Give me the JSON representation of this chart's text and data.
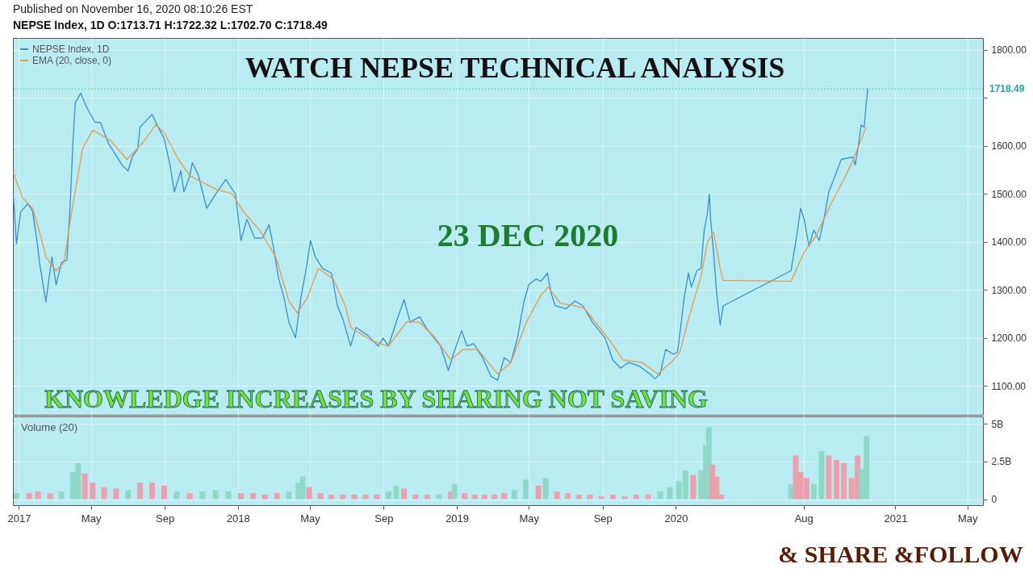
{
  "chart_data": [
    {
      "type": "line",
      "title": "Published on November 16, 2020 08:10:26 EST",
      "subtitle": "NEPSE Index, 1D O:1713.71 H:1722.32 L:1702.70 C:1718.49",
      "series": [
        {
          "name": "NEPSE Index, 1D",
          "color": "#3b8fcf",
          "x": [
            "2016-12-23",
            "2016-12-28",
            "2017-01-04",
            "2017-01-16",
            "2017-01-24",
            "2017-01-31",
            "2017-02-05",
            "2017-02-15",
            "2017-02-25",
            "2017-03-04",
            "2017-03-13",
            "2017-03-22",
            "2017-03-28",
            "2017-04-01",
            "2017-04-05",
            "2017-04-14",
            "2017-04-25",
            "2017-05-08",
            "2017-05-17",
            "2017-05-30",
            "2017-06-22",
            "2017-07-02",
            "2017-07-09",
            "2017-07-18",
            "2017-07-22",
            "2017-08-11",
            "2017-08-21",
            "2017-08-31",
            "2017-09-10",
            "2017-09-17",
            "2017-09-28",
            "2017-10-03",
            "2017-10-13",
            "2017-10-17",
            "2017-10-27",
            "2017-11-10",
            "2017-11-25",
            "2017-12-12",
            "2017-12-28",
            "2018-01-02",
            "2018-01-06",
            "2018-01-16",
            "2018-01-29",
            "2018-02-11",
            "2018-02-22",
            "2018-03-01",
            "2018-03-10",
            "2018-03-18",
            "2018-03-27",
            "2018-04-07",
            "2018-04-16",
            "2018-04-26",
            "2018-05-02",
            "2018-05-10",
            "2018-05-22",
            "2018-06-06",
            "2018-06-16",
            "2018-06-25",
            "2018-07-08",
            "2018-07-17",
            "2018-08-06",
            "2018-08-23",
            "2018-08-31",
            "2018-09-09",
            "2018-09-22",
            "2018-10-05",
            "2018-10-15",
            "2018-10-31",
            "2018-11-13",
            "2018-12-05",
            "2018-12-18",
            "2018-12-26",
            "2019-01-09",
            "2019-01-18",
            "2019-01-29",
            "2019-02-13",
            "2019-02-27",
            "2019-03-10",
            "2019-03-21",
            "2019-04-01",
            "2019-04-12",
            "2019-04-23",
            "2019-05-01",
            "2019-05-13",
            "2019-05-21",
            "2019-06-01",
            "2019-06-07",
            "2019-06-14",
            "2019-07-02",
            "2019-07-17",
            "2019-07-30",
            "2019-08-15",
            "2019-09-05",
            "2019-09-18",
            "2019-10-01",
            "2019-10-14",
            "2019-10-31",
            "2019-11-19",
            "2019-11-27",
            "2019-12-06",
            "2019-12-15",
            "2019-12-28",
            "2020-01-04",
            "2020-01-09",
            "2020-01-15",
            "2020-01-22",
            "2020-01-27",
            "2020-02-05",
            "2020-02-12",
            "2020-02-17",
            "2020-02-23",
            "2020-02-26",
            "2020-02-28",
            "2020-03-04",
            "2020-03-09",
            "2020-03-15",
            "2020-03-20",
            "2020-07-11",
            "2020-07-20",
            "2020-07-27",
            "2020-08-02",
            "2020-08-10",
            "2020-08-18",
            "2020-08-27",
            "2020-09-04",
            "2020-09-12",
            "2020-10-03",
            "2020-10-22",
            "2020-10-26",
            "2020-11-01",
            "2020-11-05",
            "2020-11-10",
            "2020-11-13",
            "2020-11-16"
          ],
          "values": [
            1492,
            1396,
            1463,
            1480,
            1463,
            1403,
            1352,
            1275,
            1369,
            1311,
            1357,
            1362,
            1492,
            1606,
            1690,
            1710,
            1678,
            1649,
            1649,
            1606,
            1560,
            1548,
            1577,
            1594,
            1639,
            1666,
            1639,
            1616,
            1560,
            1504,
            1548,
            1504,
            1538,
            1565,
            1540,
            1470,
            1500,
            1530,
            1500,
            1447,
            1403,
            1447,
            1408,
            1408,
            1436,
            1391,
            1323,
            1289,
            1233,
            1200,
            1284,
            1352,
            1403,
            1369,
            1345,
            1335,
            1267,
            1239,
            1183,
            1222,
            1205,
            1183,
            1200,
            1183,
            1233,
            1280,
            1233,
            1244,
            1217,
            1183,
            1132,
            1166,
            1215,
            1183,
            1188,
            1159,
            1120,
            1112,
            1159,
            1149,
            1200,
            1277,
            1311,
            1323,
            1318,
            1335,
            1294,
            1267,
            1261,
            1277,
            1267,
            1233,
            1200,
            1154,
            1137,
            1149,
            1142,
            1125,
            1115,
            1125,
            1176,
            1166,
            1171,
            1222,
            1284,
            1335,
            1306,
            1340,
            1345,
            1420,
            1463,
            1500,
            1447,
            1379,
            1294,
            1227,
            1267,
            1340,
            1408,
            1470,
            1447,
            1391,
            1425,
            1403,
            1447,
            1504,
            1572,
            1577,
            1560,
            1606,
            1644,
            1639,
            1683,
            1718.49
          ]
        },
        {
          "name": "EMA (20, close, 0)",
          "color": "#e39a4c",
          "x": [
            "2016-12-23",
            "2017-01-07",
            "2017-01-24",
            "2017-02-06",
            "2017-02-15",
            "2017-03-04",
            "2017-03-17",
            "2017-03-30",
            "2017-04-17",
            "2017-05-04",
            "2017-06-03",
            "2017-06-30",
            "2017-07-26",
            "2017-08-17",
            "2017-08-31",
            "2017-09-24",
            "2017-10-13",
            "2017-11-25",
            "2017-12-23",
            "2018-01-10",
            "2018-02-06",
            "2018-03-05",
            "2018-03-27",
            "2018-04-10",
            "2018-04-27",
            "2018-05-15",
            "2018-06-09",
            "2018-06-29",
            "2018-07-08",
            "2018-08-14",
            "2018-09-09",
            "2018-10-09",
            "2018-10-31",
            "2018-11-26",
            "2018-12-22",
            "2019-01-11",
            "2019-02-05",
            "2019-03-10",
            "2019-04-01",
            "2019-04-27",
            "2019-05-21",
            "2019-06-02",
            "2019-06-23",
            "2019-07-17",
            "2019-08-02",
            "2019-09-14",
            "2019-10-05",
            "2019-11-06",
            "2019-12-02",
            "2019-12-28",
            "2020-01-08",
            "2020-01-22",
            "2020-02-12",
            "2020-02-23",
            "2020-03-04",
            "2020-03-15",
            "2020-03-20",
            "2020-07-11",
            "2020-08-02",
            "2020-08-22",
            "2020-09-16",
            "2020-10-07",
            "2020-10-23",
            "2020-11-13"
          ],
          "values": [
            1543,
            1492,
            1470,
            1413,
            1369,
            1340,
            1357,
            1463,
            1594,
            1633,
            1611,
            1572,
            1606,
            1644,
            1628,
            1572,
            1538,
            1510,
            1500,
            1463,
            1425,
            1369,
            1277,
            1252,
            1284,
            1345,
            1323,
            1267,
            1222,
            1193,
            1183,
            1233,
            1233,
            1200,
            1154,
            1176,
            1176,
            1125,
            1149,
            1233,
            1289,
            1306,
            1272,
            1267,
            1261,
            1193,
            1154,
            1149,
            1125,
            1154,
            1171,
            1239,
            1328,
            1400,
            1420,
            1345,
            1320,
            1318,
            1379,
            1413,
            1480,
            1530,
            1572,
            1639
          ]
        }
      ],
      "xlim": [
        "2016-12-22",
        "2021-05-27"
      ],
      "xticks": [
        {
          "value": "2017-01-01",
          "label": null
        },
        {
          "value": "2017-05-01",
          "label": null
        },
        {
          "value": "2017-09-01",
          "label": null
        },
        {
          "value": "2018-01-01",
          "label": null
        },
        {
          "value": "2018-05-01",
          "label": null
        },
        {
          "value": "2018-09-01",
          "label": null
        },
        {
          "value": "2019-01-01",
          "label": null
        },
        {
          "value": "2019-05-01",
          "label": null
        },
        {
          "value": "2019-09-01",
          "label": null
        },
        {
          "value": "2020-01-01",
          "label": null
        },
        {
          "value": "2020-08-01",
          "label": null
        },
        {
          "value": "2021-01-01",
          "label": null
        },
        {
          "value": "2021-05-01",
          "label": null
        }
      ],
      "ylim": [
        1040,
        1825
      ],
      "yticks": [
        {
          "value": 1100,
          "label": "1100.00"
        },
        {
          "value": 1200,
          "label": "1200.00"
        },
        {
          "value": 1300,
          "label": "1300.00"
        },
        {
          "value": 1400,
          "label": "1400.00"
        },
        {
          "value": 1500,
          "label": "1500.00"
        },
        {
          "value": 1600,
          "label": "1600.00"
        },
        {
          "value": 1700,
          "label": null
        },
        {
          "value": 1800,
          "label": "1800.00"
        }
      ],
      "ref_lines": [
        {
          "axis": "y",
          "value": 1718.49,
          "label": "1718.49",
          "color": "#26a69a",
          "line_style": "dotted"
        }
      ],
      "annotations": [
        "WATCH NEPSE TECHNICAL ANALYSIS",
        "23 DEC 2020",
        "KNOWLEDGE INCREASES BY SHARING NOT SAVING"
      ],
      "grid": true,
      "legend": "top left",
      "tick_labels": "y"
    },
    {
      "type": "bar",
      "series": [
        {
          "name": "Volume (20)",
          "colors": [
            "#8fd8c6",
            "#eba0ae",
            "#eba0ae",
            "#eba0ae",
            "#8fd8c6",
            "#8fd8c6",
            "#8fd8c6",
            "#eba0ae",
            "#eba0ae",
            "#eba0ae",
            "#eba0ae",
            "#8fd8c6",
            "#eba0ae",
            "#eba0ae",
            "#eba0ae",
            "#8fd8c6",
            "#eba0ae",
            "#8fd8c6",
            "#8fd8c6",
            "#8fd8c6",
            "#eba0ae",
            "#eba0ae",
            "#eba0ae",
            "#eba0ae",
            "#8fd8c6",
            "#8fd8c6",
            "#8fd8c6",
            "#eba0ae",
            "#eba0ae",
            "#eba0ae",
            "#eba0ae",
            "#eba0ae",
            "#eba0ae",
            "#eba0ae",
            "#8fd8c6",
            "#8fd8c6",
            "#eba0ae",
            "#eba0ae",
            "#eba0ae",
            "#8fd8c6",
            "#eba0ae",
            "#8fd8c6",
            "#eba0ae",
            "#eba0ae",
            "#eba0ae",
            "#eba0ae",
            "#eba0ae",
            "#8fd8c6",
            "#8fd8c6",
            "#eba0ae",
            "#8fd8c6",
            "#eba0ae",
            "#eba0ae",
            "#eba0ae",
            "#eba0ae",
            "#eba0ae",
            "#eba0ae",
            "#eba0ae",
            "#eba0ae",
            "#eba0ae",
            "#8fd8c6",
            "#8fd8c6",
            "#8fd8c6",
            "#8fd8c6",
            "#eba0ae",
            "#8fd8c6",
            "#8fd8c6",
            "#8fd8c6",
            "#eba0ae",
            "#eba0ae",
            "#eba0ae",
            "#8fd8c6",
            "#eba0ae",
            "#eba0ae",
            "#eba0ae",
            "#8fd8c6",
            "#8fd8c6",
            "#eba0ae",
            "#eba0ae",
            "#eba0ae",
            "#eba0ae",
            "#eba0ae",
            "#8fd8c6",
            "#8fd8c6"
          ],
          "x": [
            "2016-12-28",
            "2017-01-18",
            "2017-02-02",
            "2017-02-22",
            "2017-03-13",
            "2017-04-01",
            "2017-04-10",
            "2017-04-21",
            "2017-05-04",
            "2017-05-23",
            "2017-06-12",
            "2017-07-02",
            "2017-07-22",
            "2017-08-11",
            "2017-08-31",
            "2017-09-21",
            "2017-10-13",
            "2017-11-03",
            "2017-11-25",
            "2017-12-16",
            "2018-01-06",
            "2018-01-26",
            "2018-02-15",
            "2018-03-07",
            "2018-03-27",
            "2018-04-12",
            "2018-04-19",
            "2018-04-30",
            "2018-05-19",
            "2018-06-06",
            "2018-06-25",
            "2018-07-14",
            "2018-08-02",
            "2018-08-21",
            "2018-09-09",
            "2018-09-22",
            "2018-10-05",
            "2018-10-24",
            "2018-11-13",
            "2018-12-02",
            "2018-12-22",
            "2018-12-28",
            "2019-01-14",
            "2019-01-31",
            "2019-02-16",
            "2019-03-05",
            "2019-03-21",
            "2019-04-07",
            "2019-04-26",
            "2019-05-17",
            "2019-05-29",
            "2019-06-17",
            "2019-07-05",
            "2019-07-24",
            "2019-08-11",
            "2019-08-30",
            "2019-09-18",
            "2019-10-08",
            "2019-10-27",
            "2019-11-16",
            "2019-12-06",
            "2019-12-22",
            "2020-01-06",
            "2020-01-17",
            "2020-01-30",
            "2020-02-12",
            "2020-02-20",
            "2020-02-25",
            "2020-03-02",
            "2020-03-09",
            "2020-03-17",
            "2020-07-11",
            "2020-07-19",
            "2020-07-27",
            "2020-08-06",
            "2020-08-18",
            "2020-08-31",
            "2020-09-12",
            "2020-09-25",
            "2020-10-07",
            "2020-10-20",
            "2020-10-30",
            "2020-11-06",
            "2020-11-14"
          ],
          "values": [
            0.4,
            0.4,
            0.5,
            0.4,
            0.5,
            1.8,
            2.4,
            1.7,
            1.1,
            0.8,
            0.7,
            0.6,
            1.1,
            1.1,
            0.9,
            0.5,
            0.4,
            0.5,
            0.6,
            0.5,
            0.4,
            0.4,
            0.3,
            0.4,
            0.5,
            1.1,
            1.5,
            0.8,
            0.4,
            0.3,
            0.3,
            0.3,
            0.3,
            0.3,
            0.5,
            0.9,
            0.7,
            0.3,
            0.3,
            0.3,
            0.5,
            1.0,
            0.4,
            0.3,
            0.3,
            0.3,
            0.4,
            0.6,
            1.3,
            0.9,
            1.4,
            0.5,
            0.4,
            0.3,
            0.3,
            0.2,
            0.3,
            0.2,
            0.3,
            0.3,
            0.5,
            0.8,
            1.2,
            1.9,
            1.6,
            1.9,
            3.6,
            4.8,
            2.3,
            1.5,
            0.3,
            1.0,
            2.9,
            1.8,
            1.4,
            1.0,
            3.2,
            2.9,
            2.6,
            2.4,
            1.4,
            2.9,
            2.0,
            4.2
          ]
        }
      ],
      "xlim": [
        "2016-12-22",
        "2021-05-27"
      ],
      "xticks": [
        {
          "value": "2017-01-01",
          "label": "2017"
        },
        {
          "value": "2017-05-01",
          "label": "May"
        },
        {
          "value": "2017-09-01",
          "label": "Sep"
        },
        {
          "value": "2018-01-01",
          "label": "2018"
        },
        {
          "value": "2018-05-01",
          "label": "May"
        },
        {
          "value": "2018-09-01",
          "label": "Sep"
        },
        {
          "value": "2019-01-01",
          "label": "2019"
        },
        {
          "value": "2019-05-01",
          "label": "May"
        },
        {
          "value": "2019-09-01",
          "label": "Sep"
        },
        {
          "value": "2020-01-01",
          "label": "2020"
        },
        {
          "value": "2020-08-01",
          "label": "Aug"
        },
        {
          "value": "2021-01-01",
          "label": "2021"
        },
        {
          "value": "2021-05-01",
          "label": "May"
        }
      ],
      "ylim": [
        -0.4,
        5.5
      ],
      "yticks": [
        0,
        {
          "value": 2.5,
          "label": "2.5B"
        },
        {
          "value": 5,
          "label": "5B"
        }
      ],
      "annotations": [
        "& SHARE &FOLLOW"
      ],
      "grid": true,
      "legend": "top left"
    }
  ]
}
